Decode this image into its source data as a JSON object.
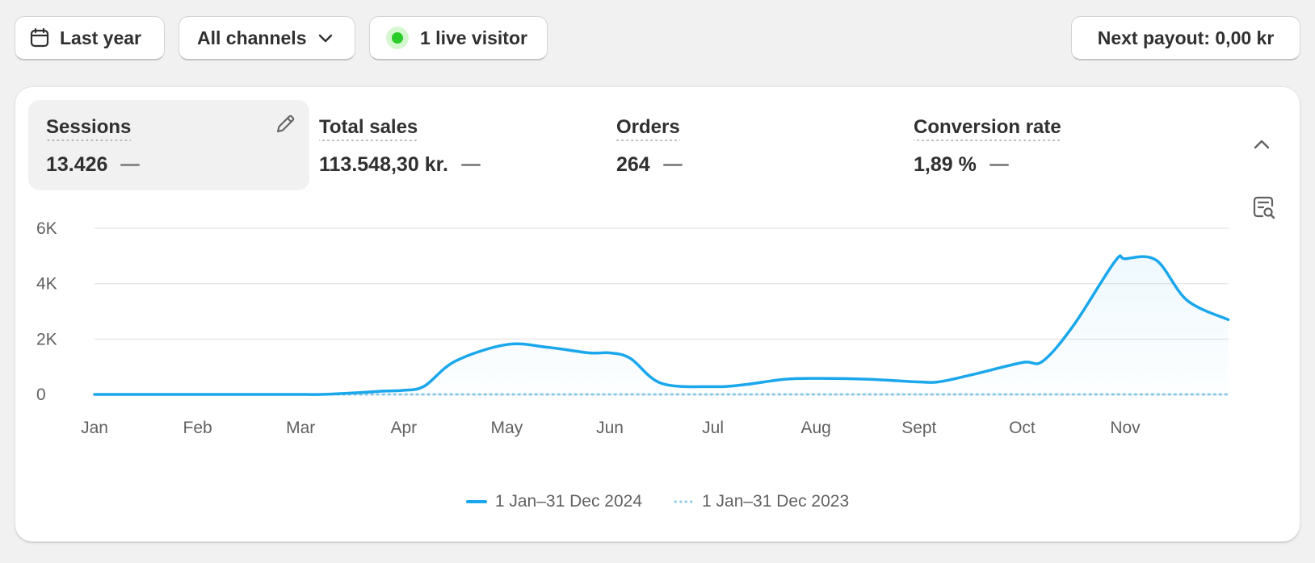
{
  "toolbar": {
    "date_range": "Last year",
    "channels": "All channels",
    "live_visitors": "1 live visitor",
    "payout": "Next payout: 0,00 kr"
  },
  "metrics": [
    {
      "label": "Sessions",
      "value": "13.426",
      "active": true
    },
    {
      "label": "Total sales",
      "value": "113.548,30 kr.",
      "active": false
    },
    {
      "label": "Orders",
      "value": "264",
      "active": false
    },
    {
      "label": "Conversion rate",
      "value": "1,89 %",
      "active": false
    }
  ],
  "chart_data": {
    "type": "line",
    "categories": [
      "Jan",
      "Feb",
      "Mar",
      "Apr",
      "May",
      "Jun",
      "Jul",
      "Aug",
      "Sept",
      "Oct",
      "Nov"
    ],
    "yticks": [
      "6K",
      "4K",
      "2K",
      "0"
    ],
    "ylim": [
      0,
      6000
    ],
    "series": [
      {
        "name": "1 Jan–31 Dec 2024",
        "color": "#1aa7ec",
        "style": "solid",
        "x": [
          0,
          0.5,
          1,
          1.5,
          2,
          2.2,
          2.5,
          2.8,
          3,
          3.2,
          3.5,
          4,
          4.4,
          4.8,
          5,
          5.2,
          5.5,
          6,
          6.3,
          6.7,
          7,
          7.5,
          8,
          8.2,
          8.5,
          9,
          9.2,
          9.5,
          9.9,
          10,
          10.3,
          10.6,
          11
        ],
        "values": [
          0,
          0,
          0,
          0,
          0,
          0,
          50,
          120,
          150,
          300,
          1200,
          1800,
          1700,
          1500,
          1500,
          1300,
          400,
          280,
          350,
          550,
          580,
          550,
          450,
          460,
          700,
          1150,
          1200,
          2500,
          4800,
          4900,
          4850,
          3400,
          2700
        ]
      },
      {
        "name": "1 Jan–31 Dec 2023",
        "color": "#8ccaea",
        "style": "dotted",
        "x": [
          0,
          11
        ],
        "values": [
          0,
          0
        ]
      }
    ],
    "legend": "bottom-center",
    "grid": true
  },
  "icons": {
    "date": "calendar-icon",
    "channels": "chevron-down-icon",
    "live": "live-status-dot",
    "edit": "pencil-icon",
    "collapse": "chevron-up-icon",
    "report": "report-search-icon"
  }
}
